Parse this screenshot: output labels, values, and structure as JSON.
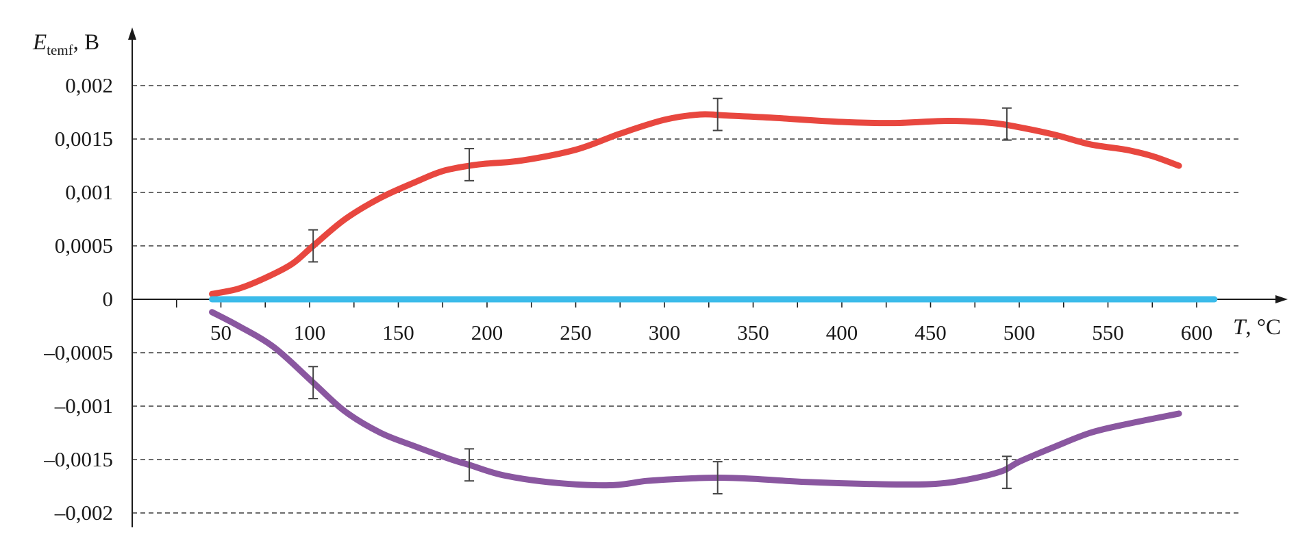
{
  "chart_data": {
    "type": "line",
    "ylabel": {
      "main": "E",
      "sub": "temf",
      "unit": ", В"
    },
    "xlabel": {
      "main": "T",
      "unit": ", °C"
    },
    "xlim": [
      0,
      600
    ],
    "ylim": [
      -0.002,
      0.002
    ],
    "x_ticks": [
      50,
      100,
      150,
      200,
      250,
      300,
      350,
      400,
      450,
      500,
      550,
      600
    ],
    "x_tick_labels": [
      "50",
      "100",
      "150",
      "200",
      "250",
      "300",
      "350",
      "400",
      "450",
      "500",
      "550",
      "600"
    ],
    "y_ticks": [
      0.002,
      0.0015,
      0.001,
      0.0005,
      0,
      -0.0005,
      -0.001,
      -0.0015,
      -0.002
    ],
    "y_tick_labels": [
      "0,002",
      "0,0015",
      "0,001",
      "0,0005",
      "0",
      "–0,0005",
      "–0,001",
      "–0,0015",
      "–0,002"
    ],
    "grid": "horizontal dashed",
    "series": [
      {
        "color": "#e8473f",
        "x": [
          45,
          60,
          75,
          90,
          102,
          120,
          140,
          160,
          175,
          190,
          200,
          220,
          250,
          275,
          300,
          320,
          335,
          360,
          400,
          430,
          460,
          485,
          500,
          520,
          540,
          560,
          575,
          590
        ],
        "y": [
          5e-05,
          0.0001,
          0.0002,
          0.00033,
          0.0005,
          0.00075,
          0.00095,
          0.0011,
          0.0012,
          0.00125,
          0.00127,
          0.0013,
          0.0014,
          0.00155,
          0.00168,
          0.00173,
          0.00172,
          0.0017,
          0.00166,
          0.00165,
          0.00167,
          0.00165,
          0.00161,
          0.00154,
          0.00145,
          0.0014,
          0.00134,
          0.00125
        ],
        "error_bars": [
          {
            "x": 102,
            "y": 0.0005,
            "err": 0.00015
          },
          {
            "x": 190,
            "y": 0.00126,
            "err": 0.00015
          },
          {
            "x": 330,
            "y": 0.00173,
            "err": 0.00015
          },
          {
            "x": 493,
            "y": 0.00164,
            "err": 0.00015
          }
        ]
      },
      {
        "color": "#3bbbea",
        "x": [
          45,
          610
        ],
        "y": [
          0,
          0
        ],
        "error_bars": []
      },
      {
        "color": "#8a57a0",
        "x": [
          45,
          60,
          80,
          102,
          120,
          140,
          160,
          180,
          190,
          210,
          240,
          270,
          290,
          310,
          330,
          350,
          380,
          420,
          450,
          470,
          490,
          500,
          520,
          540,
          560,
          590
        ],
        "y": [
          -0.00012,
          -0.00025,
          -0.00045,
          -0.00078,
          -0.00105,
          -0.00125,
          -0.00138,
          -0.0015,
          -0.00155,
          -0.00165,
          -0.00172,
          -0.00174,
          -0.0017,
          -0.00168,
          -0.00167,
          -0.00168,
          -0.00171,
          -0.00173,
          -0.00173,
          -0.00169,
          -0.00161,
          -0.00152,
          -0.00138,
          -0.00125,
          -0.00117,
          -0.00107
        ],
        "error_bars": [
          {
            "x": 102,
            "y": -0.00078,
            "err": 0.00015
          },
          {
            "x": 190,
            "y": -0.00155,
            "err": 0.00015
          },
          {
            "x": 330,
            "y": -0.00167,
            "err": 0.00015
          },
          {
            "x": 493,
            "y": -0.00162,
            "err": 0.00015
          }
        ]
      }
    ]
  }
}
